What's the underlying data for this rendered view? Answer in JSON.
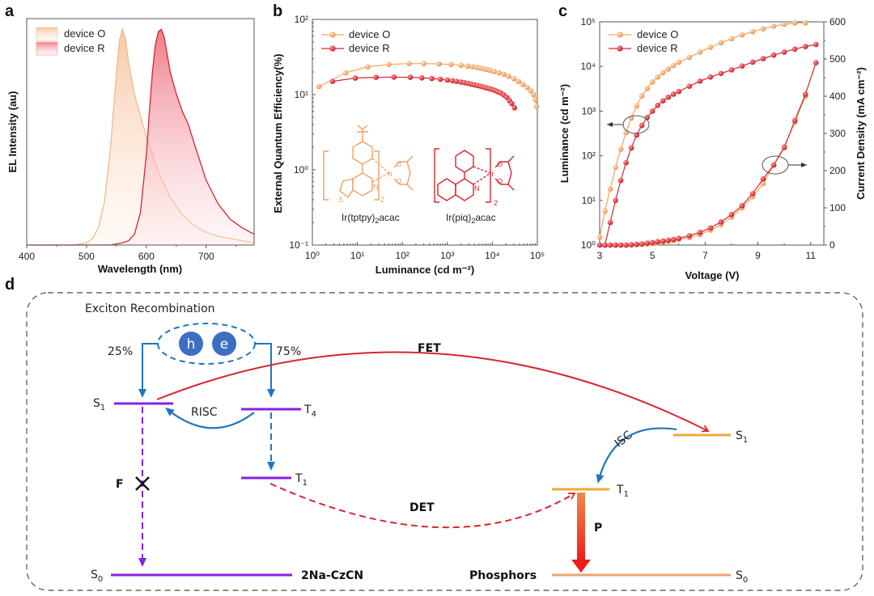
{
  "colors": {
    "orange": "#F0A35E",
    "red": "#D7262E",
    "purple": "#8B1FE0",
    "blue": "#1F77C0",
    "level_orange": "#F2A63A",
    "gray_dash": "#666666"
  },
  "chart_data": [
    {
      "panel": "a",
      "type": "area",
      "xlabel": "Wavelength (nm)",
      "ylabel": "EL Intensity (au)",
      "xlim": [
        400,
        780
      ],
      "ylim": [
        0,
        1.05
      ],
      "xticks": [
        "400",
        "500",
        "600",
        "700"
      ],
      "legend": [
        "device O",
        "device R"
      ],
      "legend_position": "top-left",
      "series": [
        {
          "name": "device O",
          "x": [
            400,
            480,
            500,
            510,
            520,
            530,
            540,
            550,
            555,
            560,
            565,
            570,
            580,
            590,
            600,
            620,
            640,
            660,
            680,
            700,
            720,
            740,
            760,
            780
          ],
          "y": [
            0.0,
            0.0,
            0.01,
            0.03,
            0.08,
            0.2,
            0.45,
            0.8,
            0.95,
            1.0,
            0.96,
            0.85,
            0.7,
            0.6,
            0.5,
            0.34,
            0.22,
            0.14,
            0.09,
            0.06,
            0.04,
            0.03,
            0.02,
            0.01
          ]
        },
        {
          "name": "device R",
          "x": [
            400,
            540,
            560,
            570,
            580,
            590,
            600,
            605,
            610,
            615,
            620,
            625,
            630,
            640,
            650,
            660,
            670,
            680,
            700,
            720,
            740,
            760,
            780
          ],
          "y": [
            0.0,
            0.0,
            0.01,
            0.02,
            0.05,
            0.15,
            0.42,
            0.62,
            0.8,
            0.93,
            0.99,
            1.0,
            0.96,
            0.8,
            0.7,
            0.62,
            0.56,
            0.47,
            0.3,
            0.19,
            0.12,
            0.08,
            0.05
          ]
        }
      ]
    },
    {
      "panel": "b",
      "type": "line",
      "xlabel": "Luminance (cd m⁻²)",
      "ylabel": "External Quantum Efficiency(%)",
      "xscale": "log",
      "yscale": "log",
      "xlim": [
        1,
        100000
      ],
      "ylim": [
        0.1,
        100
      ],
      "xticks": [
        "10⁰",
        "10¹",
        "10²",
        "10³",
        "10⁴",
        "10⁵"
      ],
      "yticks": [
        "10⁻¹",
        "10⁰",
        "10¹",
        "10²"
      ],
      "legend": [
        "device O",
        "device R"
      ],
      "legend_position": "top-left",
      "series": [
        {
          "name": "device O",
          "x": [
            1.4,
            5.5,
            17,
            50,
            140,
            300,
            650,
            1200,
            2000,
            2800,
            3600,
            4500,
            5500,
            6500,
            7600,
            9000,
            11000,
            14000,
            18000,
            23000,
            30000,
            38000,
            48000,
            60000,
            72000,
            82000,
            90000,
            95000
          ],
          "y": [
            12.8,
            19.5,
            23.5,
            25.2,
            25.8,
            25.8,
            25.6,
            25.2,
            24.5,
            24.0,
            23.5,
            23.0,
            22.5,
            22.0,
            21.6,
            21.0,
            20.3,
            19.5,
            18.6,
            17.5,
            16.3,
            15.0,
            13.6,
            12.4,
            11.2,
            10.0,
            8.6,
            7.0
          ]
        },
        {
          "name": "device R",
          "x": [
            2.8,
            9,
            26,
            65,
            150,
            270,
            450,
            700,
            1000,
            1300,
            1600,
            2000,
            2400,
            2900,
            3400,
            4000,
            4700,
            5500,
            6400,
            7400,
            8600,
            10000,
            11600,
            13400,
            15500,
            18000,
            21000,
            24000,
            27000,
            31000
          ],
          "y": [
            15.0,
            16.6,
            17.0,
            17.1,
            17.0,
            16.7,
            16.4,
            16.0,
            15.6,
            15.3,
            15.0,
            14.7,
            14.4,
            14.1,
            13.8,
            13.5,
            13.2,
            12.9,
            12.6,
            12.3,
            12.0,
            11.7,
            11.3,
            10.9,
            10.5,
            9.9,
            9.2,
            8.3,
            7.6,
            6.7
          ]
        }
      ],
      "annotations": [
        "Ir(tptpy)₂acac",
        "Ir(piq)₂acac"
      ]
    },
    {
      "panel": "c",
      "type": "line",
      "xlabel": "Voltage (V)",
      "ylabel_left": "Luminance (cd m⁻²)",
      "ylabel_right": "Current Density (mA cm⁻²)",
      "xlim": [
        3,
        11.5
      ],
      "ylim_left": [
        1,
        100000
      ],
      "ylim_right": [
        0,
        600
      ],
      "yscale_left": "log",
      "xticks": [
        "3",
        "5",
        "7",
        "9",
        "11"
      ],
      "yticks_left": [
        "10⁰",
        "10¹",
        "10²",
        "10³",
        "10⁴",
        "10⁵"
      ],
      "yticks_right": [
        "0",
        "100",
        "200",
        "300",
        "400",
        "500",
        "600"
      ],
      "legend": [
        "device O",
        "device R"
      ],
      "legend_position": "top-left",
      "series": [
        {
          "name": "device O",
          "axis": "left",
          "x": [
            3.0,
            3.2,
            3.4,
            3.6,
            3.8,
            4.0,
            4.2,
            4.4,
            4.6,
            4.8,
            5.0,
            5.2,
            5.4,
            5.6,
            5.8,
            6.0,
            6.4,
            6.8,
            7.2,
            7.6,
            8.0,
            8.4,
            8.8,
            9.2,
            9.6,
            10.0,
            10.4,
            10.8
          ],
          "y": [
            1.5,
            5.8,
            18,
            55,
            140,
            330,
            700,
            1300,
            2200,
            3200,
            4500,
            5800,
            7200,
            8800,
            10500,
            12500,
            16000,
            21000,
            27000,
            34000,
            42000,
            51000,
            60000,
            70000,
            80000,
            88000,
            94000,
            95000
          ]
        },
        {
          "name": "device R",
          "axis": "left",
          "x": [
            3.2,
            3.4,
            3.6,
            3.8,
            4.0,
            4.2,
            4.4,
            4.6,
            4.8,
            5.0,
            5.2,
            5.4,
            5.6,
            5.8,
            6.0,
            6.4,
            6.8,
            7.2,
            7.6,
            8.0,
            8.4,
            8.8,
            9.2,
            9.6,
            10.0,
            10.4,
            10.8,
            11.2
          ],
          "y": [
            1,
            3.2,
            10,
            28,
            70,
            150,
            290,
            480,
            720,
            1000,
            1350,
            1700,
            2050,
            2400,
            2750,
            3600,
            4700,
            5800,
            7000,
            8400,
            10200,
            12500,
            15000,
            18000,
            21000,
            24500,
            28000,
            31000
          ]
        },
        {
          "name": "device O",
          "axis": "right",
          "x": [
            3.0,
            3.2,
            3.4,
            3.6,
            3.8,
            4.0,
            4.2,
            4.4,
            4.6,
            4.8,
            5.0,
            5.2,
            5.4,
            5.6,
            5.8,
            6.0,
            6.4,
            6.8,
            7.2,
            7.6,
            8.0,
            8.4,
            8.8,
            9.2,
            9.6,
            10.0,
            10.4,
            10.8
          ],
          "y": [
            0,
            0,
            0,
            0,
            0,
            0,
            0.5,
            1,
            2,
            3,
            4,
            6,
            8,
            10,
            12,
            15,
            20,
            28,
            40,
            55,
            75,
            100,
            130,
            165,
            215,
            265,
            330,
            400
          ]
        },
        {
          "name": "device R",
          "axis": "right",
          "x": [
            3.0,
            3.2,
            3.4,
            3.6,
            3.8,
            4.0,
            4.2,
            4.4,
            4.6,
            4.8,
            5.0,
            5.2,
            5.4,
            5.6,
            5.8,
            6.0,
            6.4,
            6.8,
            7.2,
            7.6,
            8.0,
            8.4,
            8.8,
            9.2,
            9.6,
            10.0,
            10.4,
            10.8,
            11.2
          ],
          "y": [
            0,
            0,
            0,
            0,
            0,
            0,
            1,
            2,
            3,
            5,
            7,
            9,
            11,
            13,
            15,
            18,
            25,
            34,
            46,
            62,
            82,
            106,
            138,
            178,
            215,
            262,
            335,
            405,
            490
          ]
        }
      ]
    }
  ],
  "panels": {
    "a": "a",
    "b": "b",
    "c": "c",
    "d": "d"
  },
  "legend": {
    "device_o": "device O",
    "device_r": "device R"
  },
  "panel_b_molecules": {
    "left": {
      "name_prefix": "Ir(tptpy)",
      "sub": "2",
      "name_suffix": "acac",
      "subscript_2": "2",
      "atoms": {
        "ir": "Ir",
        "o1": "O",
        "o2": "O",
        "n": "N",
        "s": "S"
      }
    },
    "right": {
      "name_prefix": "Ir(piq)",
      "sub": "2",
      "name_suffix": "acac",
      "subscript_2": "2",
      "atoms": {
        "ir": "Ir",
        "o1": "O",
        "o2": "O",
        "n": "N"
      }
    }
  },
  "diagram": {
    "title": "Exciton Recombination",
    "hole": "h",
    "electron": "e",
    "pct_singlet": "25%",
    "pct_triplet": "75%",
    "host_levels": {
      "S1": {
        "main": "S",
        "sub": "1"
      },
      "T4": {
        "main": "T",
        "sub": "4"
      },
      "T1": {
        "main": "T",
        "sub": "1"
      },
      "S0": {
        "main": "S",
        "sub": "0"
      }
    },
    "guest_levels": {
      "S1": {
        "main": "S",
        "sub": "1"
      },
      "T1": {
        "main": "T",
        "sub": "1"
      },
      "S0": {
        "main": "S",
        "sub": "0"
      }
    },
    "processes": {
      "risc": "RISC",
      "fet": "FET",
      "det": "DET",
      "isc": "ISC",
      "f": "F",
      "p": "P"
    },
    "host_name": "2Na-CzCN",
    "guest_name": "Phosphors"
  }
}
